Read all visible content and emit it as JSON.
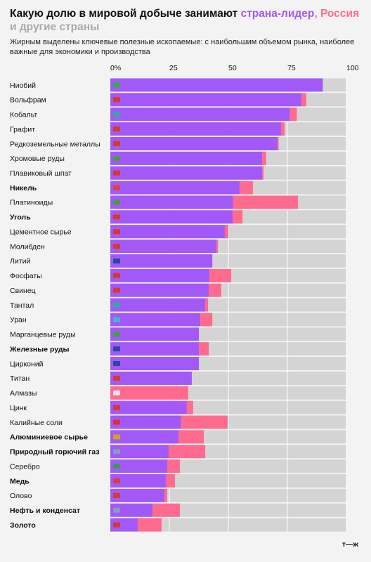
{
  "chart_data": {
    "type": "stacked-bar-horizontal",
    "title": "Какую долю в мировой добыче занимают",
    "title_separator": ",",
    "other_label": "и другие страны",
    "subtitle": "Жирным выделены ключевые полезные ископаемые: с наибольшим объемом рынка, наиболее важные для экономики и производства",
    "logo": "т—ж",
    "categories": [
      "Ниобий",
      "Вольфрам",
      "Кобальт",
      "Графит",
      "Редкоземельные металлы",
      "Хромовые руды",
      "Плавиковый шпат",
      "Никель",
      "Платиноиды",
      "Уголь",
      "Цементное сырье",
      "Молибден",
      "Литий",
      "Фосфаты",
      "Свинец",
      "Тантал",
      "Уран",
      "Марганцевые руды",
      "Железные руды",
      "Цирконий",
      "Титан",
      "Алмазы",
      "Цинк",
      "Калийные соли",
      "Алюминиевое сырье",
      "Природный горючий газ",
      "Серебро",
      "Медь",
      "Олово",
      "Нефть и конденсат",
      "Золото"
    ],
    "bold": [
      false,
      false,
      false,
      false,
      false,
      false,
      false,
      true,
      false,
      true,
      false,
      false,
      false,
      false,
      false,
      false,
      false,
      false,
      true,
      false,
      false,
      false,
      false,
      false,
      true,
      true,
      false,
      true,
      false,
      true,
      true
    ],
    "series": [
      {
        "name": "страна-лидер",
        "color": "#a259f7",
        "values": [
          90,
          81,
          76,
          72.3,
          70.8,
          64.3,
          64.3,
          54.8,
          52,
          51.8,
          48.5,
          45,
          43.2,
          42,
          41.7,
          40.2,
          38.1,
          37.5,
          37.5,
          37.5,
          34.5,
          0,
          32.4,
          30,
          28.9,
          24.7,
          24.1,
          23.5,
          22.9,
          17.9,
          11.6
        ]
      },
      {
        "name": "Россия",
        "color": "#ff6b8e",
        "values": [
          0,
          2,
          3,
          1.5,
          0.5,
          1.7,
          0.6,
          5.6,
          27.5,
          4.2,
          1.5,
          0.6,
          0,
          9.2,
          5.3,
          1.2,
          5.1,
          0,
          4.2,
          0,
          0,
          33,
          2.7,
          19.7,
          10.7,
          15.5,
          5.4,
          3.9,
          1.2,
          11.6,
          10.1
        ]
      }
    ],
    "other_color": "#d4d4d4",
    "xlim": [
      0,
      100
    ],
    "xticks": [
      {
        "value": 0,
        "label": "0%"
      },
      25,
      50,
      75,
      100
    ],
    "grid": true
  }
}
